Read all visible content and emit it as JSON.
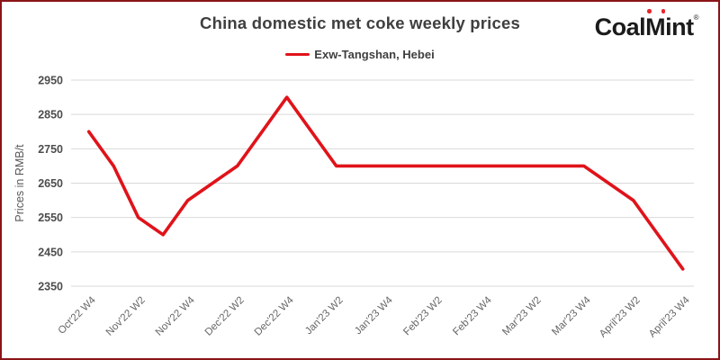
{
  "page": {
    "border_color": "#8b1417",
    "background_color": "#ffffff"
  },
  "header": {
    "title": "China domestic met coke weekly prices"
  },
  "logo": {
    "part_coal": "Coal",
    "part_m": "M",
    "part_int": "int",
    "registered_mark": "®",
    "text_color": "#1b1b1b",
    "dot_color": "#e8242b"
  },
  "legend": {
    "label": "Exw-Tangshan, Hebei",
    "swatch_color": "#e0131a"
  },
  "chart_data": {
    "type": "line",
    "title": "China domestic met coke weekly prices",
    "xlabel": "",
    "ylabel": "Prices in RMB/t",
    "ylim": [
      2350,
      2950
    ],
    "yticks": [
      2350,
      2450,
      2550,
      2650,
      2750,
      2850,
      2950
    ],
    "grid": "horizontal",
    "gridline_color": "#d9d9d9",
    "legend_position": "top-center",
    "categories": [
      "Oct'22 W4",
      "Nov'22 W2",
      "Nov'22 W4",
      "Dec'22 W2",
      "Dec'22 W4",
      "Jan'23 W2",
      "Jan'23 W4",
      "Feb'23 W2",
      "Feb'23 W4",
      "Mar'23 W2",
      "Mar'23 W4",
      "April'23 W2",
      "April'23 W4"
    ],
    "label_every_nth_point": 2,
    "series": [
      {
        "name": "Exw-Tangshan, Hebei",
        "color": "#e0131a",
        "note": "weekly data points; x-axis labels shown every second point",
        "values": [
          2800,
          2700,
          2550,
          2500,
          2600,
          2650,
          2700,
          2800,
          2900,
          2800,
          2700,
          2700,
          2700,
          2700,
          2700,
          2700,
          2700,
          2700,
          2700,
          2700,
          2700,
          2650,
          2600,
          2500,
          2400
        ]
      }
    ]
  }
}
